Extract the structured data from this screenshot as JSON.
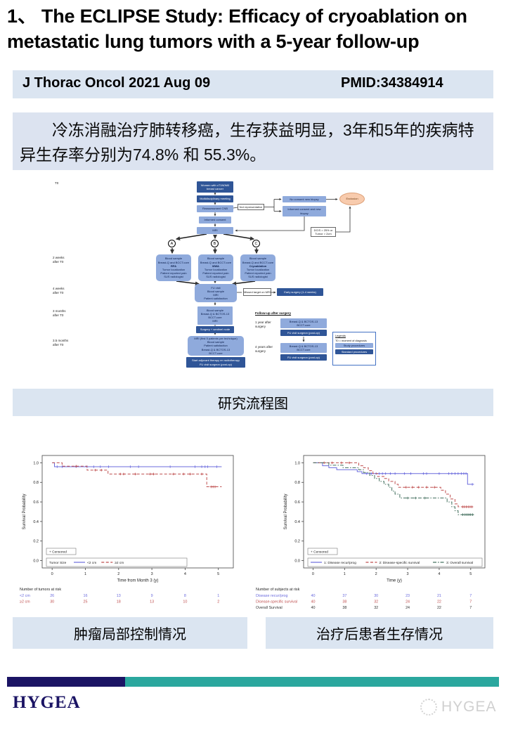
{
  "page": {
    "title": "1、 The ECLIPSE Study: Efficacy of cryoablation on metastatic lung tumors with a 5-year follow-up",
    "journal": "J Thorac Oncol 2021 Aug 09",
    "pmid": "PMID:34384914",
    "summary": "冷冻消融治疗肺转移癌，生存获益明显，3年和5年的疾病特异生存率分别为74.8% 和 55.3%。",
    "caption_flowchart": "研究流程图",
    "caption_left": "肿瘤局部控制情况",
    "caption_right": "治疗后患者生存情况",
    "footer_logo": "HYGEA",
    "footer_watermark": "HYGEA"
  },
  "flowchart": {
    "time_labels": {
      "t0": "T0",
      "w2": "2 weeks\nafter T0",
      "w4": "4 weeks\nafter T0",
      "m3": "3 months\nafter T0",
      "m35": "3.5 months\nafter T0"
    },
    "nodes": {
      "start": "Women with cT1N0M0\nbreast cancer",
      "mdm": "Multidisciplinary meeting",
      "cnb": "Reassessment CNB",
      "notrep": "Not representative",
      "nocon": "No consent new biopsy",
      "newbio": "Informed consent and new\nbiopsy",
      "exclusion": "Exclusion",
      "consent": "Informed consent",
      "mri": "MRI",
      "dcis": "DCIS > 25% or\nTumor > 2cm",
      "a": "A",
      "b": "B",
      "c": "C",
      "arm_pre": "Blood sample\nBreast-Q and BCCT.core",
      "arm_a": "RFA",
      "arm_b": "MWA",
      "arm_c": "Cryoablation",
      "arm_post": "Tumor localization\nPatient reported pain\nSUS radiologist",
      "fuvisit": "FU visit\nBlood sample\nMRI\nPatient satisfaction",
      "missed": "Missed target on MRI",
      "early": "Early surgery (1-4 weeks)",
      "m3box": "Blood sample\nBreast-Q & BCTOS-13\nBCCT.core\nMRI",
      "surgery": "Surgery + sentinel node",
      "m35box": "MRI (first 5 patients per technique)\nBlood sample\nPatient satisfaction\nBreast-Q & BCTOS-13\nBCCT.core",
      "adjuvant": "Start adjuvant therapy en radiotherapy\nFU visit surgeon (post-op)",
      "fu_heading": "Follow-up after surgery",
      "fu1": "1 year after\nsurgery",
      "fu4": "4 years after\nsurgery",
      "fubox": "Breast-Q & BCTOS-13\nBCCT.core",
      "fuvisit_post": "FU visit surgeon (post-op)",
      "legend_title": "Legends",
      "legend_t0": "T0 = moment of diagnosis",
      "legend_study": "Study procedures",
      "legend_standard": "Standard procedures"
    }
  },
  "chart_data": [
    {
      "type": "line",
      "km": true,
      "title": "",
      "xlabel": "Time from Month 3 (y)",
      "ylabel": "Survival Probability",
      "xlim": [
        -0.3,
        5.45
      ],
      "ylim": [
        0,
        1
      ],
      "xticks": [
        0,
        1,
        2,
        3,
        4,
        5
      ],
      "yticks": [
        0.0,
        0.2,
        0.4,
        0.6,
        0.8,
        1.0
      ],
      "legend_censored": "+ Censored",
      "legend_title": "Tumor Size",
      "series": [
        {
          "name": "<2 cm",
          "color": "#6b6bdd",
          "dash": "solid",
          "points": [
            [
              0,
              1.0
            ],
            [
              0.07,
              1.0
            ],
            [
              0.07,
              0.96
            ],
            [
              5.1,
              0.96
            ]
          ],
          "censors": [
            [
              0.15,
              0.96
            ],
            [
              0.3,
              0.96
            ],
            [
              0.72,
              0.96
            ],
            [
              1.05,
              0.96
            ],
            [
              1.25,
              0.96
            ],
            [
              1.45,
              0.96
            ],
            [
              1.7,
              0.96
            ],
            [
              2.35,
              0.96
            ],
            [
              2.6,
              0.96
            ],
            [
              3.55,
              0.96
            ],
            [
              4.3,
              0.96
            ],
            [
              4.5,
              0.96
            ],
            [
              4.6,
              0.96
            ],
            [
              4.68,
              0.96
            ],
            [
              4.95,
              0.96
            ]
          ]
        },
        {
          "name": "≥2 cm",
          "color": "#bf4e4e",
          "dash": "dashed",
          "points": [
            [
              0,
              1.0
            ],
            [
              0.3,
              1.0
            ],
            [
              0.3,
              0.965
            ],
            [
              1.05,
              0.965
            ],
            [
              1.05,
              0.925
            ],
            [
              1.68,
              0.925
            ],
            [
              1.68,
              0.885
            ],
            [
              4.65,
              0.885
            ],
            [
              4.65,
              0.755
            ],
            [
              5.1,
              0.755
            ]
          ],
          "censors": [
            [
              0.72,
              0.965
            ],
            [
              1.3,
              0.925
            ],
            [
              1.48,
              0.925
            ],
            [
              2.05,
              0.885
            ],
            [
              2.15,
              0.885
            ],
            [
              2.5,
              0.885
            ],
            [
              2.95,
              0.885
            ],
            [
              3.05,
              0.885
            ],
            [
              3.65,
              0.885
            ],
            [
              3.95,
              0.885
            ],
            [
              4.15,
              0.885
            ],
            [
              4.5,
              0.885
            ],
            [
              4.78,
              0.755
            ],
            [
              4.84,
              0.755
            ],
            [
              4.9,
              0.755
            ]
          ]
        }
      ],
      "risk_header": "Number of tumors at risk",
      "risk_rows": [
        {
          "label": "<2 cm",
          "color": "#6b6bdd",
          "values": [
            26,
            16,
            13,
            9,
            8,
            1
          ]
        },
        {
          "label": "≥2 cm",
          "color": "#bf4e4e",
          "values": [
            30,
            25,
            18,
            13,
            10,
            2
          ]
        }
      ]
    },
    {
      "type": "line",
      "km": true,
      "title": "",
      "xlabel": "Time (y)",
      "ylabel": "Survival Probability",
      "xlim": [
        -0.3,
        5.45
      ],
      "ylim": [
        0,
        1
      ],
      "xticks": [
        0,
        1,
        2,
        3,
        4,
        5
      ],
      "yticks": [
        0.0,
        0.2,
        0.4,
        0.6,
        0.8,
        1.0
      ],
      "legend_censored": "+ Censored",
      "legend_title": "",
      "series": [
        {
          "name": "1: Disease recur/prog",
          "color": "#6b6bdd",
          "dash": "solid",
          "points": [
            [
              0,
              1.0
            ],
            [
              0.3,
              1.0
            ],
            [
              0.3,
              0.97
            ],
            [
              0.5,
              0.97
            ],
            [
              0.5,
              0.95
            ],
            [
              0.75,
              0.95
            ],
            [
              0.75,
              0.93
            ],
            [
              1.4,
              0.93
            ],
            [
              1.4,
              0.91
            ],
            [
              1.55,
              0.91
            ],
            [
              1.55,
              0.89
            ],
            [
              4.9,
              0.89
            ],
            [
              4.9,
              0.78
            ],
            [
              5.1,
              0.78
            ]
          ],
          "censors": [
            [
              1.7,
              0.89
            ],
            [
              1.85,
              0.89
            ],
            [
              2.0,
              0.89
            ],
            [
              2.1,
              0.89
            ],
            [
              2.2,
              0.89
            ],
            [
              2.3,
              0.89
            ],
            [
              2.45,
              0.89
            ],
            [
              2.6,
              0.89
            ],
            [
              2.9,
              0.89
            ],
            [
              3.1,
              0.89
            ],
            [
              3.5,
              0.89
            ],
            [
              3.6,
              0.89
            ],
            [
              4.0,
              0.89
            ],
            [
              4.3,
              0.89
            ],
            [
              4.4,
              0.89
            ],
            [
              4.5,
              0.89
            ],
            [
              4.6,
              0.89
            ],
            [
              4.7,
              0.89
            ],
            [
              4.78,
              0.89
            ],
            [
              4.85,
              0.89
            ],
            [
              5.05,
              0.78
            ]
          ]
        },
        {
          "name": "2: Disease-specific survival",
          "color": "#bf4e4e",
          "dash": "dashed",
          "points": [
            [
              0,
              1.0
            ],
            [
              1.45,
              1.0
            ],
            [
              1.45,
              0.97
            ],
            [
              1.6,
              0.97
            ],
            [
              1.6,
              0.95
            ],
            [
              1.75,
              0.95
            ],
            [
              1.75,
              0.92
            ],
            [
              1.9,
              0.92
            ],
            [
              1.9,
              0.89
            ],
            [
              2.05,
              0.89
            ],
            [
              2.05,
              0.86
            ],
            [
              2.25,
              0.86
            ],
            [
              2.25,
              0.84
            ],
            [
              2.4,
              0.84
            ],
            [
              2.4,
              0.81
            ],
            [
              2.6,
              0.81
            ],
            [
              2.6,
              0.78
            ],
            [
              2.7,
              0.78
            ],
            [
              2.7,
              0.75
            ],
            [
              4.05,
              0.75
            ],
            [
              4.05,
              0.72
            ],
            [
              4.2,
              0.72
            ],
            [
              4.2,
              0.68
            ],
            [
              4.35,
              0.68
            ],
            [
              4.35,
              0.63
            ],
            [
              4.5,
              0.63
            ],
            [
              4.5,
              0.58
            ],
            [
              4.6,
              0.58
            ],
            [
              4.6,
              0.55
            ],
            [
              5.1,
              0.55
            ]
          ],
          "censors": [
            [
              0.35,
              1.0
            ],
            [
              0.6,
              1.0
            ],
            [
              0.9,
              1.0
            ],
            [
              1.15,
              1.0
            ],
            [
              2.95,
              0.75
            ],
            [
              3.15,
              0.75
            ],
            [
              3.35,
              0.75
            ],
            [
              3.6,
              0.75
            ],
            [
              3.85,
              0.75
            ],
            [
              4.75,
              0.55
            ],
            [
              4.8,
              0.55
            ],
            [
              4.86,
              0.55
            ],
            [
              4.92,
              0.55
            ],
            [
              4.98,
              0.55
            ],
            [
              5.04,
              0.55
            ]
          ]
        },
        {
          "name": "3: Overall survival",
          "color": "#44705f",
          "dash": "dashdot",
          "points": [
            [
              0,
              1.0
            ],
            [
              0.5,
              1.0
            ],
            [
              0.5,
              0.975
            ],
            [
              0.95,
              0.975
            ],
            [
              0.95,
              0.95
            ],
            [
              1.45,
              0.95
            ],
            [
              1.45,
              0.93
            ],
            [
              1.6,
              0.93
            ],
            [
              1.6,
              0.9
            ],
            [
              1.8,
              0.9
            ],
            [
              1.8,
              0.87
            ],
            [
              1.95,
              0.87
            ],
            [
              1.95,
              0.84
            ],
            [
              2.1,
              0.84
            ],
            [
              2.1,
              0.81
            ],
            [
              2.25,
              0.81
            ],
            [
              2.25,
              0.78
            ],
            [
              2.4,
              0.78
            ],
            [
              2.4,
              0.75
            ],
            [
              2.5,
              0.75
            ],
            [
              2.5,
              0.71
            ],
            [
              2.6,
              0.71
            ],
            [
              2.6,
              0.68
            ],
            [
              2.75,
              0.68
            ],
            [
              2.75,
              0.64
            ],
            [
              4.25,
              0.64
            ],
            [
              4.25,
              0.6
            ],
            [
              4.4,
              0.6
            ],
            [
              4.4,
              0.55
            ],
            [
              4.5,
              0.55
            ],
            [
              4.5,
              0.51
            ],
            [
              4.6,
              0.51
            ],
            [
              4.6,
              0.47
            ],
            [
              5.1,
              0.47
            ]
          ],
          "censors": [
            [
              3.0,
              0.64
            ],
            [
              3.25,
              0.64
            ],
            [
              3.55,
              0.64
            ],
            [
              4.75,
              0.47
            ],
            [
              4.82,
              0.47
            ],
            [
              4.88,
              0.47
            ],
            [
              4.94,
              0.47
            ],
            [
              5.0,
              0.47
            ],
            [
              5.06,
              0.47
            ]
          ]
        }
      ],
      "risk_header": "Number of subjects at risk",
      "risk_rows": [
        {
          "label": "Disease recur/prog",
          "color": "#6b6bdd",
          "values": [
            40,
            37,
            30,
            23,
            21,
            7
          ]
        },
        {
          "label": "Disease-specific survival",
          "color": "#bf4e4e",
          "values": [
            40,
            38,
            32,
            24,
            22,
            7
          ]
        },
        {
          "label": "Overall Survival",
          "color": "#333333",
          "values": [
            40,
            38,
            32,
            24,
            22,
            7
          ]
        }
      ]
    }
  ]
}
